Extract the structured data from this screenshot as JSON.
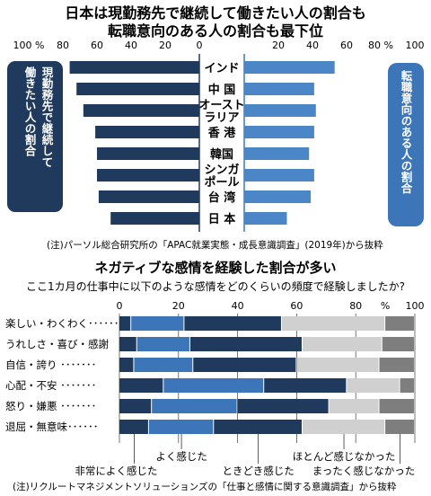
{
  "colors": {
    "dark_navy": "#1f3a5c",
    "mid_blue": "#3d76b8",
    "light_blue": "#4b86c6",
    "light_gray": "#d0d0d0",
    "dark_gray": "#7e7e7e"
  },
  "chart_data": [
    {
      "type": "bar",
      "orientation": "butterfly",
      "title_lines": [
        "日本は現勤務先で継続して働きたい人の割合も",
        "転職意向のある人の割合も最下位"
      ],
      "categories": [
        "インド",
        "中国",
        "オーストラリア",
        "香港",
        "韓国",
        "シンガポール",
        "台湾",
        "日本"
      ],
      "category_label_lines": [
        [
          "インド"
        ],
        [
          "中 国"
        ],
        [
          "オースト",
          "ラリア"
        ],
        [
          "香 港"
        ],
        [
          "韓国"
        ],
        [
          "シンガ",
          "ポール"
        ],
        [
          "台 湾"
        ],
        [
          "日 本"
        ]
      ],
      "series": [
        {
          "name": "現勤務先で継続して働きたい人の割合",
          "side": "left",
          "values": [
            76,
            72,
            68,
            61,
            60,
            60,
            59,
            52
          ]
        },
        {
          "name": "転職意向のある人の割合",
          "side": "right",
          "values": [
            53,
            41,
            42,
            41,
            38,
            41,
            39,
            25
          ]
        }
      ],
      "ylim": [
        0,
        100
      ],
      "left_ticks": [
        "100 %",
        "80",
        "60",
        "40",
        "20",
        "0"
      ],
      "right_ticks": [
        "20",
        "40",
        "60",
        "80 %",
        "100"
      ],
      "side_label_left_lines": [
        "現勤務先で継続して",
        "働きたい人の割合"
      ],
      "side_label_right": "転職意向のある人の割合",
      "note": "(注)パーソル総合研究所の「APAC就業実態・成長意識調査」(2019年)から抜粋"
    },
    {
      "type": "bar",
      "orientation": "horizontal-stacked-100",
      "title": "ネガティブな感情を経験した割合が多い",
      "subtitle": "ここ1カ月の仕事中に以下のような感情をどのくらいの頻度で経験しましたか?",
      "categories": [
        "楽しい・わくわく",
        "うれしさ・喜び・感謝",
        "自信・誇り",
        "心配・不安",
        "怒り・嫌悪",
        "退屈・無意味"
      ],
      "category_leaders": [
        "楽しい・わくわく･･････",
        "うれしさ・喜び・感謝",
        "自信・誇り ･･･････",
        "心配・不安 ･･･････",
        "怒り・嫌悪 ･･･････",
        "退屈・無意味･･････"
      ],
      "x_ticks": [
        "0",
        "20",
        "40",
        "60",
        "80",
        "%",
        "100"
      ],
      "xlim": [
        0,
        100
      ],
      "series": [
        {
          "name": "非常によく感じた",
          "values": [
            4,
            6,
            5,
            15,
            11,
            10
          ]
        },
        {
          "name": "よく感じた",
          "values": [
            18,
            18,
            20,
            34,
            29,
            22
          ]
        },
        {
          "name": "ときどき感じた",
          "values": [
            33,
            38,
            35,
            28,
            31,
            30
          ]
        },
        {
          "name": "ほとんど感じなかった",
          "values": [
            35,
            27,
            28,
            18,
            17,
            28
          ]
        },
        {
          "name": "まったく感じなかった",
          "values": [
            10,
            11,
            12,
            5,
            12,
            10
          ]
        }
      ],
      "legend_top": [
        "よく感じた",
        "ほとんど感じなかった"
      ],
      "legend_bottom": [
        "非常によく感じた",
        "ときどき感じた",
        "まったく感じなかった"
      ],
      "note": "(注)リクルートマネジメントソリューションズの「仕事と感情に関する意識調査」から抜粋"
    }
  ]
}
